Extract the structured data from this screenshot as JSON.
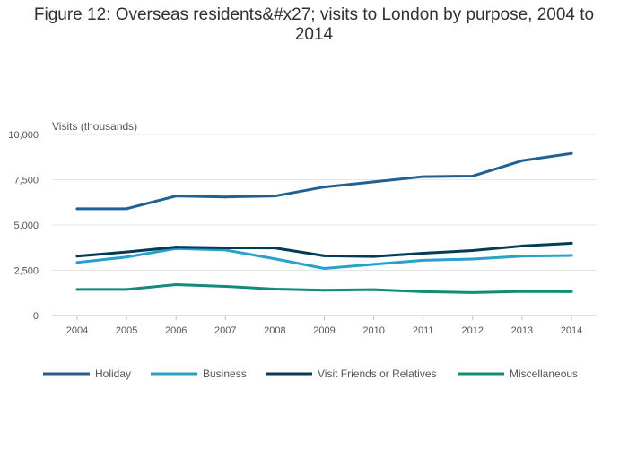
{
  "chart_data": {
    "type": "line",
    "title": "Figure 12: Overseas residents&#x27; visits to London by purpose, 2004 to 2014",
    "ylabel": "Visits (thousands)",
    "xlabel": "",
    "x": [
      2004,
      2005,
      2006,
      2007,
      2008,
      2009,
      2010,
      2011,
      2012,
      2013,
      2014
    ],
    "x_tick_labels": [
      "2004",
      "2005",
      "2006",
      "2007",
      "2008",
      "2009",
      "2010",
      "2011",
      "2012",
      "2013",
      "2014"
    ],
    "ylim": [
      0,
      10000
    ],
    "y_ticks": [
      0,
      2500,
      5000,
      7500,
      10000
    ],
    "y_tick_labels": [
      "0",
      "2,500",
      "5,000",
      "7,500",
      "10,000"
    ],
    "grid": true,
    "legend_position": "bottom",
    "series": [
      {
        "name": "Holiday",
        "color": "#206095",
        "values": [
          5900,
          5900,
          6600,
          6550,
          6600,
          7100,
          7380,
          7670,
          7700,
          8550,
          8950
        ]
      },
      {
        "name": "Business",
        "color": "#27a0cc",
        "values": [
          2930,
          3230,
          3700,
          3620,
          3130,
          2600,
          2830,
          3050,
          3120,
          3280,
          3320
        ]
      },
      {
        "name": "Visit Friends or Relatives",
        "color": "#003c57",
        "values": [
          3280,
          3510,
          3780,
          3740,
          3730,
          3300,
          3260,
          3440,
          3590,
          3840,
          3990
        ]
      },
      {
        "name": "Miscellaneous",
        "color": "#118c7b",
        "values": [
          1440,
          1440,
          1710,
          1610,
          1460,
          1400,
          1430,
          1320,
          1270,
          1330,
          1320
        ]
      }
    ]
  }
}
